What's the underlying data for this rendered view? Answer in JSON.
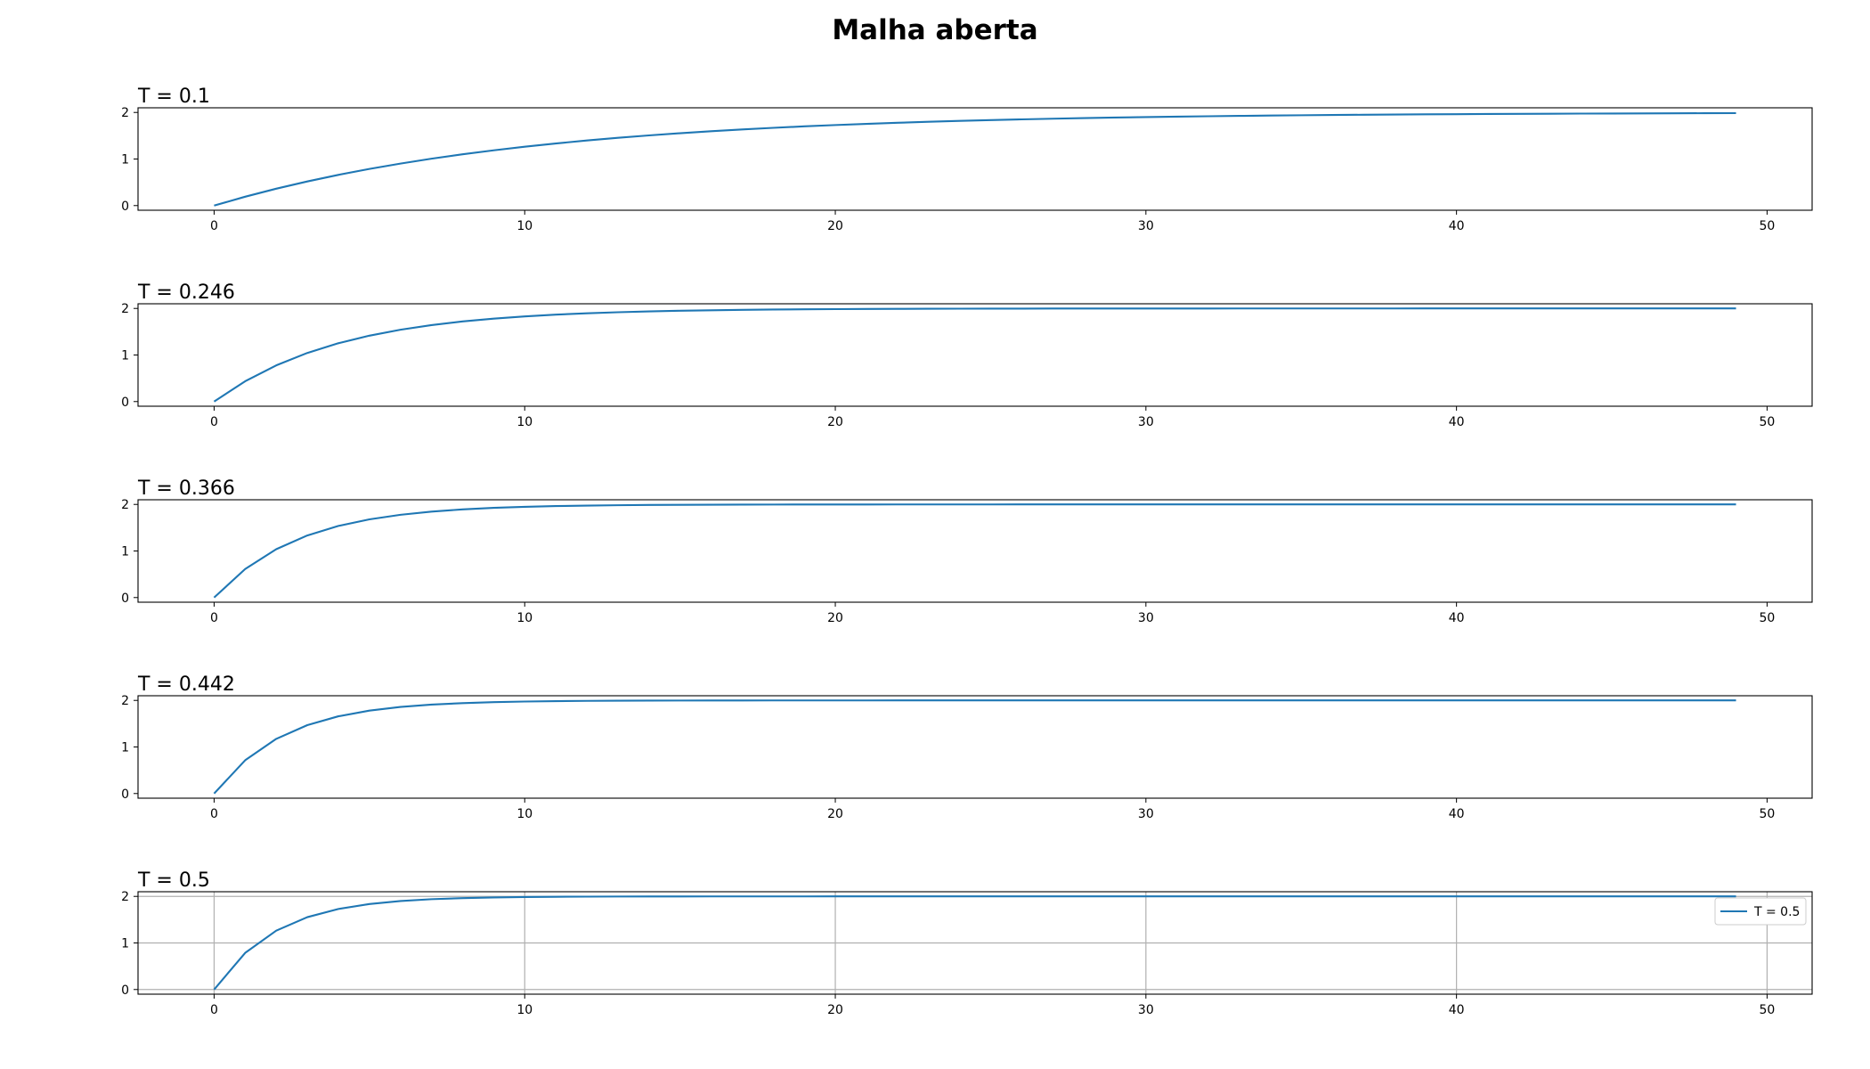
{
  "figure_title": "Malha aberta",
  "colors": {
    "line": "#1f77b4",
    "grid": "#b0b0b0",
    "axes": "#000000"
  },
  "chart_data": [
    {
      "type": "line",
      "title": "T = 0.1",
      "xlabel": "",
      "ylabel": "",
      "xlim": [
        -2.45,
        51.45
      ],
      "ylim": [
        -0.1,
        2.1
      ],
      "xticks": [
        0,
        10,
        20,
        30,
        40,
        50
      ],
      "yticks": [
        0,
        1,
        2
      ],
      "grid": false,
      "legend": null,
      "series": [
        {
          "T": 0.1,
          "gain": 2,
          "x_start": 0,
          "x_end": 49
        }
      ]
    },
    {
      "type": "line",
      "title": "T = 0.246",
      "xlabel": "",
      "ylabel": "",
      "xlim": [
        -2.45,
        51.45
      ],
      "ylim": [
        -0.1,
        2.1
      ],
      "xticks": [
        0,
        10,
        20,
        30,
        40,
        50
      ],
      "yticks": [
        0,
        1,
        2
      ],
      "grid": false,
      "legend": null,
      "series": [
        {
          "T": 0.246,
          "gain": 2,
          "x_start": 0,
          "x_end": 49
        }
      ]
    },
    {
      "type": "line",
      "title": "T = 0.366",
      "xlabel": "",
      "ylabel": "",
      "xlim": [
        -2.45,
        51.45
      ],
      "ylim": [
        -0.1,
        2.1
      ],
      "xticks": [
        0,
        10,
        20,
        30,
        40,
        50
      ],
      "yticks": [
        0,
        1,
        2
      ],
      "grid": false,
      "legend": null,
      "series": [
        {
          "T": 0.366,
          "gain": 2,
          "x_start": 0,
          "x_end": 49
        }
      ]
    },
    {
      "type": "line",
      "title": "T = 0.442",
      "xlabel": "",
      "ylabel": "",
      "xlim": [
        -2.45,
        51.45
      ],
      "ylim": [
        -0.1,
        2.1
      ],
      "xticks": [
        0,
        10,
        20,
        30,
        40,
        50
      ],
      "yticks": [
        0,
        1,
        2
      ],
      "grid": false,
      "legend": null,
      "series": [
        {
          "T": 0.442,
          "gain": 2,
          "x_start": 0,
          "x_end": 49
        }
      ]
    },
    {
      "type": "line",
      "title": "T = 0.5",
      "xlabel": "",
      "ylabel": "",
      "xlim": [
        -2.45,
        51.45
      ],
      "ylim": [
        -0.1,
        2.1
      ],
      "xticks": [
        0,
        10,
        20,
        30,
        40,
        50
      ],
      "yticks": [
        0,
        1,
        2
      ],
      "grid": true,
      "legend": "top-right",
      "series": [
        {
          "name": "T = 0.5",
          "T": 0.5,
          "gain": 2,
          "x_start": 0,
          "x_end": 49
        }
      ]
    }
  ]
}
